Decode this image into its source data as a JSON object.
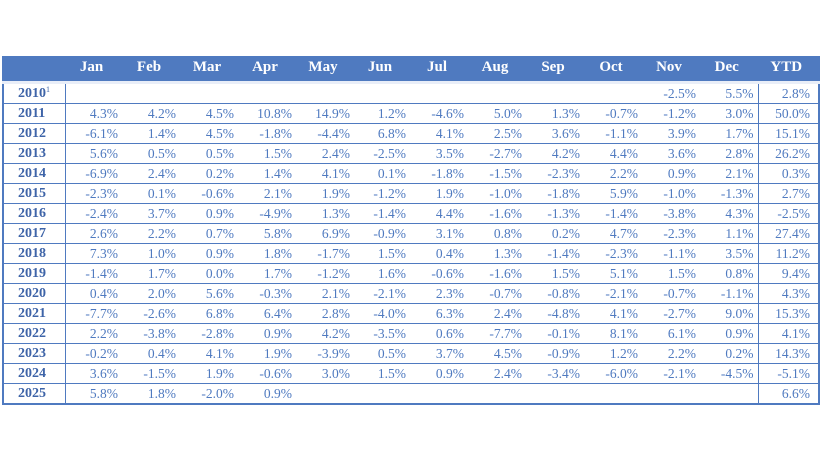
{
  "header": {
    "year": "",
    "months": [
      "Jan",
      "Feb",
      "Mar",
      "Apr",
      "May",
      "Jun",
      "Jul",
      "Aug",
      "Sep",
      "Oct",
      "Nov",
      "Dec"
    ],
    "ytd": "YTD"
  },
  "rows": [
    {
      "year": "2010",
      "note": "1",
      "m": [
        "",
        "",
        "",
        "",
        "",
        "",
        "",
        "",
        "",
        "",
        "-2.5%",
        "5.5%"
      ],
      "ytd": "2.8%"
    },
    {
      "year": "2011",
      "note": "",
      "m": [
        "4.3%",
        "4.2%",
        "4.5%",
        "10.8%",
        "14.9%",
        "1.2%",
        "-4.6%",
        "5.0%",
        "1.3%",
        "-0.7%",
        "-1.2%",
        "3.0%"
      ],
      "ytd": "50.0%"
    },
    {
      "year": "2012",
      "note": "",
      "m": [
        "-6.1%",
        "1.4%",
        "4.5%",
        "-1.8%",
        "-4.4%",
        "6.8%",
        "4.1%",
        "2.5%",
        "3.6%",
        "-1.1%",
        "3.9%",
        "1.7%"
      ],
      "ytd": "15.1%"
    },
    {
      "year": "2013",
      "note": "",
      "m": [
        "5.6%",
        "0.5%",
        "0.5%",
        "1.5%",
        "2.4%",
        "-2.5%",
        "3.5%",
        "-2.7%",
        "4.2%",
        "4.4%",
        "3.6%",
        "2.8%"
      ],
      "ytd": "26.2%"
    },
    {
      "year": "2014",
      "note": "",
      "m": [
        "-6.9%",
        "2.4%",
        "0.2%",
        "1.4%",
        "4.1%",
        "0.1%",
        "-1.8%",
        "-1.5%",
        "-2.3%",
        "2.2%",
        "0.9%",
        "2.1%"
      ],
      "ytd": "0.3%"
    },
    {
      "year": "2015",
      "note": "",
      "m": [
        "-2.3%",
        "0.1%",
        "-0.6%",
        "2.1%",
        "1.9%",
        "-1.2%",
        "1.9%",
        "-1.0%",
        "-1.8%",
        "5.9%",
        "-1.0%",
        "-1.3%"
      ],
      "ytd": "2.7%"
    },
    {
      "year": "2016",
      "note": "",
      "m": [
        "-2.4%",
        "3.7%",
        "0.9%",
        "-4.9%",
        "1.3%",
        "-1.4%",
        "4.4%",
        "-1.6%",
        "-1.3%",
        "-1.4%",
        "-3.8%",
        "4.3%"
      ],
      "ytd": "-2.5%"
    },
    {
      "year": "2017",
      "note": "",
      "m": [
        "2.6%",
        "2.2%",
        "0.7%",
        "5.8%",
        "6.9%",
        "-0.9%",
        "3.1%",
        "0.8%",
        "0.2%",
        "4.7%",
        "-2.3%",
        "1.1%"
      ],
      "ytd": "27.4%"
    },
    {
      "year": "2018",
      "note": "",
      "m": [
        "7.3%",
        "1.0%",
        "0.9%",
        "1.8%",
        "-1.7%",
        "1.5%",
        "0.4%",
        "1.3%",
        "-1.4%",
        "-2.3%",
        "-1.1%",
        "3.5%"
      ],
      "ytd": "11.2%"
    },
    {
      "year": "2019",
      "note": "",
      "m": [
        "-1.4%",
        "1.7%",
        "0.0%",
        "1.7%",
        "-1.2%",
        "1.6%",
        "-0.6%",
        "-1.6%",
        "1.5%",
        "5.1%",
        "1.5%",
        "0.8%"
      ],
      "ytd": "9.4%"
    },
    {
      "year": "2020",
      "note": "",
      "m": [
        "0.4%",
        "2.0%",
        "5.6%",
        "-0.3%",
        "2.1%",
        "-2.1%",
        "2.3%",
        "-0.7%",
        "-0.8%",
        "-2.1%",
        "-0.7%",
        "-1.1%"
      ],
      "ytd": "4.3%"
    },
    {
      "year": "2021",
      "note": "",
      "m": [
        "-7.7%",
        "-2.6%",
        "6.8%",
        "6.4%",
        "2.8%",
        "-4.0%",
        "6.3%",
        "2.4%",
        "-4.8%",
        "4.1%",
        "-2.7%",
        "9.0%"
      ],
      "ytd": "15.3%"
    },
    {
      "year": "2022",
      "note": "",
      "m": [
        "2.2%",
        "-3.8%",
        "-2.8%",
        "0.9%",
        "4.2%",
        "-3.5%",
        "0.6%",
        "-7.7%",
        "-0.1%",
        "8.1%",
        "6.1%",
        "0.9%"
      ],
      "ytd": "4.1%"
    },
    {
      "year": "2023",
      "note": "",
      "m": [
        "-0.2%",
        "0.4%",
        "4.1%",
        "1.9%",
        "-3.9%",
        "0.5%",
        "3.7%",
        "4.5%",
        "-0.9%",
        "1.2%",
        "2.2%",
        "0.2%"
      ],
      "ytd": "14.3%"
    },
    {
      "year": "2024",
      "note": "",
      "m": [
        "3.6%",
        "-1.5%",
        "1.9%",
        "-0.6%",
        "3.0%",
        "1.5%",
        "0.9%",
        "2.4%",
        "-3.4%",
        "-6.0%",
        "-2.1%",
        "-4.5%"
      ],
      "ytd": "-5.1%"
    },
    {
      "year": "2025",
      "note": "",
      "m": [
        "5.8%",
        "1.8%",
        "-2.0%",
        "0.9%",
        "",
        "",
        "",
        "",
        "",
        "",
        "",
        ""
      ],
      "ytd": "6.6%"
    }
  ],
  "colors": {
    "header_bg": "#4f7ac0",
    "text": "#4f7ac0",
    "year_text": "#3e64a8"
  }
}
